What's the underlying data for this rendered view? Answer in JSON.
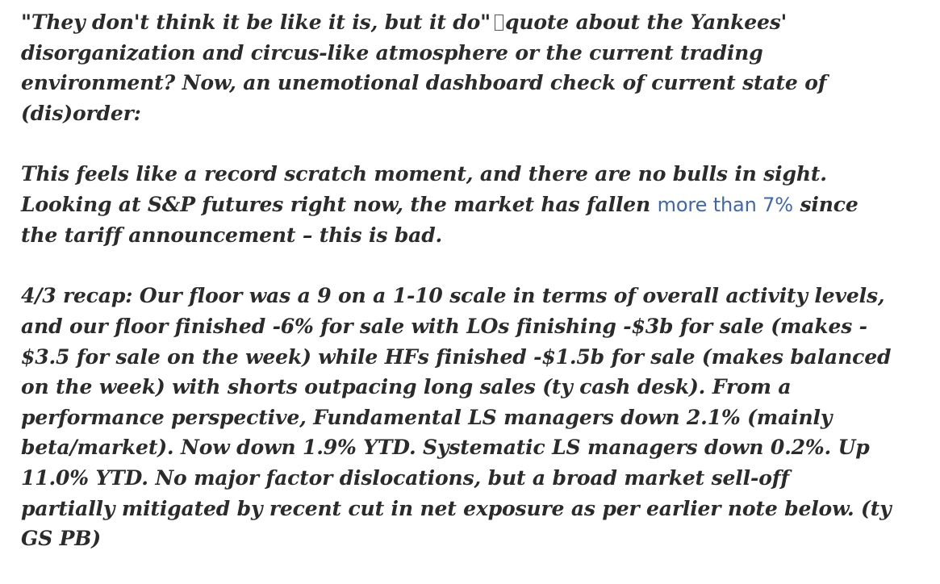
{
  "p1": {
    "line1_a": "\"They don't think it be like it is, but it do\"",
    "line1_b": "quote about the Yankees'",
    "line2": "disorganization and circus-like atmosphere or the current trading",
    "line3": "environment?  Now, an unemotional dashboard check of current state of",
    "line4": "(dis)order:"
  },
  "p2": {
    "line1": "This feels like a record scratch moment, and there are no bulls in sight.",
    "line2_a": "Looking at S&P futures right now, the market has fallen",
    "line2_link": "more than 7%",
    "line2_b": "since",
    "line3": "the tariff announcement – this is bad."
  },
  "p3": {
    "lines": [
      "4/3 recap: Our floor was a 9 on a 1-10 scale in terms of overall activity levels,",
      "and our floor finished -6% for sale with LOs finishing -$3b for sale (makes -",
      "$3.5 for sale on the week) while HFs finished -$1.5b for sale (makes balanced",
      "on the week) with shorts outpacing long sales (ty cash desk). From a",
      "performance perspective, Fundamental LS managers down 2.1% (mainly",
      "beta/market). Now down 1.9% YTD. Systematic LS managers down 0.2%. Up",
      "11.0% YTD. No major factor dislocations, but a broad market sell-off",
      "partially mitigated by recent cut in net exposure as per earlier note below. (ty",
      "GS PB)"
    ]
  },
  "colors": {
    "text": "#2b2b2b",
    "link": "#3f66b1"
  }
}
